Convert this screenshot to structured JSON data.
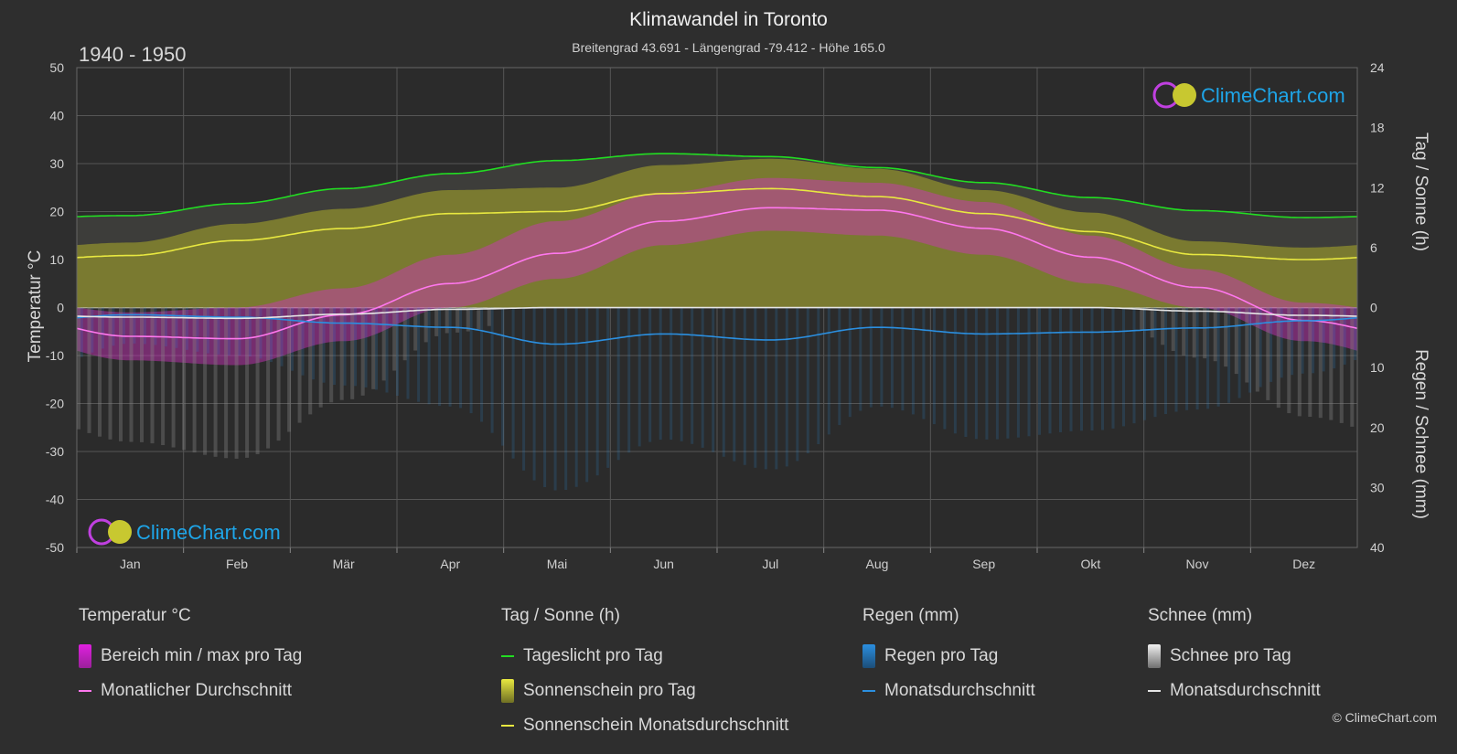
{
  "header": {
    "title": "Klimawandel in Toronto",
    "subtitle": "Breitengrad 43.691 - Längengrad -79.412 - Höhe 165.0",
    "period": "1940 - 1950"
  },
  "logo": {
    "text": "ClimeChart.com"
  },
  "copyright": "© ClimeChart.com",
  "legend": {
    "temperature": {
      "title": "Temperatur °C",
      "range": "Bereich min / max pro Tag",
      "avg": "Monatlicher Durchschnitt"
    },
    "daylight": {
      "title": "Tag / Sonne (h)",
      "daylight": "Tageslicht pro Tag",
      "sunshine": "Sonnenschein pro Tag",
      "sunshine_avg": "Sonnenschein Monatsdurchschnitt"
    },
    "rain": {
      "title": "Regen (mm)",
      "rain": "Regen pro Tag",
      "avg": "Monatsdurchschnitt"
    },
    "snow": {
      "title": "Schnee (mm)",
      "snow": "Schnee pro Tag",
      "avg": "Monatsdurchschnitt"
    }
  },
  "colors": {
    "daylight": "#22dd22",
    "sunshine_avg": "#e8e840",
    "temp_avg": "#ff77ee",
    "rain": "#2b8fe0",
    "snow": "#e6e6e6",
    "temp_range": "#d030c0",
    "sunshine_fill": "#8f8f2e",
    "logo": "#1ea5e8"
  },
  "chart_data": {
    "type": "line",
    "categories": [
      "Jan",
      "Feb",
      "Mär",
      "Apr",
      "Mai",
      "Jun",
      "Jul",
      "Aug",
      "Sep",
      "Okt",
      "Nov",
      "Dez"
    ],
    "left_axis": {
      "label": "Temperatur °C",
      "range": [
        -50,
        50
      ],
      "ticks": [
        50,
        40,
        30,
        20,
        10,
        0,
        -10,
        -20,
        -30,
        -40,
        -50
      ]
    },
    "right_axis_top": {
      "label": "Tag / Sonne (h)",
      "range": [
        0,
        24
      ],
      "ticks": [
        24,
        18,
        12,
        6,
        0
      ]
    },
    "right_axis_bottom": {
      "label": "Regen / Schnee (mm)",
      "range": [
        0,
        40
      ],
      "ticks": [
        0,
        10,
        20,
        30,
        40
      ]
    },
    "grid": true,
    "series": [
      {
        "name": "Tageslicht pro Tag",
        "axis": "hours",
        "values": [
          9.2,
          10.4,
          11.9,
          13.4,
          14.7,
          15.4,
          15.1,
          14.0,
          12.5,
          11.0,
          9.7,
          9.0
        ]
      },
      {
        "name": "Sonnenschein Monatsdurchschnitt",
        "axis": "hours",
        "values": [
          5.2,
          6.7,
          7.9,
          9.4,
          9.6,
          11.4,
          11.9,
          11.1,
          9.4,
          7.6,
          5.3,
          4.8
        ]
      },
      {
        "name": "Monatlicher Durchschnitt",
        "axis": "temp",
        "values": [
          -6.0,
          -6.5,
          -1.5,
          5.0,
          11.3,
          18.0,
          20.8,
          20.3,
          16.5,
          10.5,
          4.2,
          -2.7
        ]
      },
      {
        "name": "Regen Monatsdurchschnitt",
        "axis": "precip",
        "values": [
          1.2,
          1.6,
          2.6,
          3.3,
          6.1,
          4.4,
          5.4,
          3.3,
          4.4,
          4.1,
          3.4,
          2.2
        ]
      },
      {
        "name": "Schnee Monatsdurchschnitt",
        "axis": "precip",
        "values": [
          1.6,
          1.8,
          1.1,
          0.3,
          0.0,
          0.0,
          0.0,
          0.0,
          0.0,
          0.0,
          0.6,
          1.3
        ]
      },
      {
        "name": "Bereich min / max pro Tag",
        "axis": "temp",
        "min": [
          -11,
          -12,
          -7,
          0,
          6,
          13,
          16,
          15,
          11,
          5,
          0,
          -7
        ],
        "max": [
          -1,
          0,
          4,
          11,
          18,
          24,
          27,
          26,
          22,
          15,
          8,
          1
        ]
      }
    ]
  }
}
